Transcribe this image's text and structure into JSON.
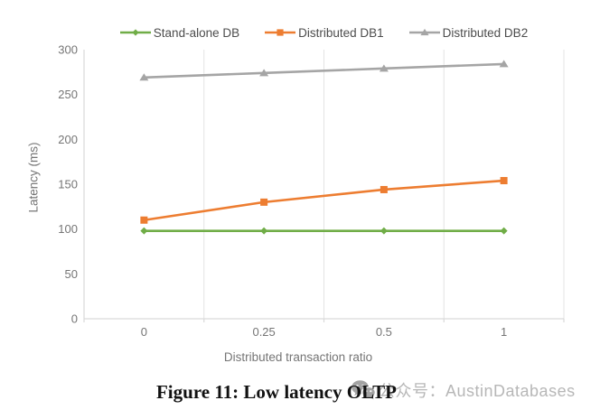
{
  "chart_data": {
    "type": "line",
    "title": "",
    "categories": [
      "0",
      "0.25",
      "0.5",
      "1"
    ],
    "series": [
      {
        "name": "Stand-alone DB",
        "color": "#70AD47",
        "marker": "diamond",
        "values": [
          98,
          98,
          98,
          98
        ]
      },
      {
        "name": "Distributed DB1",
        "color": "#ED7D31",
        "marker": "square",
        "values": [
          110,
          130,
          144,
          154
        ]
      },
      {
        "name": "Distributed DB2",
        "color": "#A5A5A5",
        "marker": "triangle",
        "values": [
          269,
          274,
          279,
          284
        ]
      }
    ],
    "xlabel": "Distributed transaction ratio",
    "ylabel": "Latency (ms)",
    "ylim": [
      0,
      300
    ],
    "ytick_step": 50,
    "legend_position": "top",
    "gridlines": "vertical-only",
    "axis_line_color": "#D9D9D9",
    "gridline_color": "#E4E4E4"
  },
  "caption": {
    "text": "Figure 11: Low latency OLTP"
  },
  "watermark": {
    "icon": "wechat-icon",
    "text": "公众号：AustinDatabases"
  }
}
